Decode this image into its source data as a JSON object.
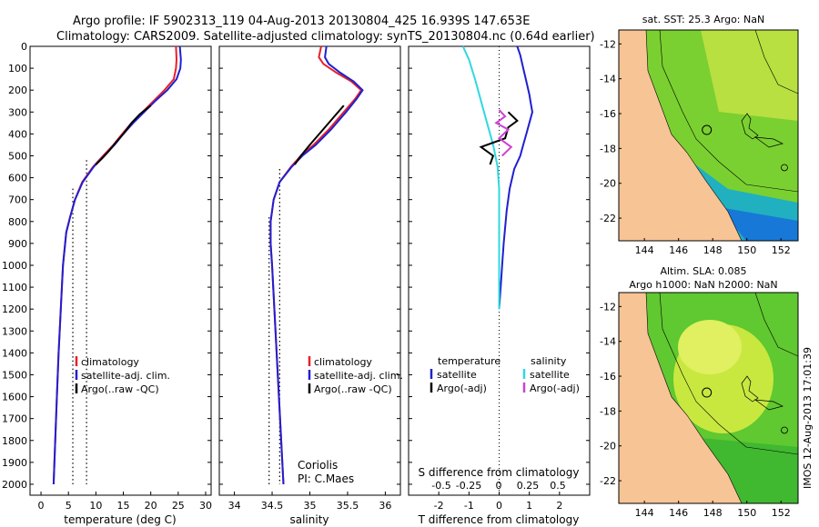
{
  "header": {
    "line1": "Argo profile: IF 5902313_119 04-Aug-2013 20130804_425 16.939S 147.653E",
    "line2": "Climatology: CARS2009. Satellite-adjusted climatology: synTS_20130804.nc (0.64d earlier)"
  },
  "side_label": "IMOS 12-Aug-2013 17:01:39",
  "chart_data": [
    {
      "type": "line",
      "id": "temperature",
      "xlabel": "temperature (deg C)",
      "ylabel": "",
      "xlim": [
        -2,
        31
      ],
      "ylim": [
        2050,
        0
      ],
      "xticks": [
        0,
        5,
        10,
        15,
        20,
        25,
        30
      ],
      "yticks": [
        0,
        100,
        200,
        300,
        400,
        500,
        600,
        700,
        800,
        900,
        1000,
        1100,
        1200,
        1300,
        1400,
        1500,
        1600,
        1700,
        1800,
        1900,
        2000
      ],
      "legend": [
        "climatology",
        "satellite-adj. clim.",
        "Argo(..raw -QC)"
      ],
      "legend_colors": [
        "#e8202a",
        "#2020d0",
        "#000000"
      ],
      "series": [
        {
          "name": "climatology",
          "color": "#e8202a",
          "points": [
            [
              24.6,
              0
            ],
            [
              24.7,
              60
            ],
            [
              24.6,
              100
            ],
            [
              24.2,
              150
            ],
            [
              22.5,
              200
            ],
            [
              20.5,
              250
            ],
            [
              18.5,
              300
            ],
            [
              16.5,
              350
            ],
            [
              14.8,
              400
            ],
            [
              13.2,
              450
            ],
            [
              11.3,
              500
            ],
            [
              9.5,
              550
            ],
            [
              7.5,
              620
            ],
            [
              6.2,
              700
            ],
            [
              5.3,
              780
            ],
            [
              4.6,
              850
            ],
            [
              4.0,
              1000
            ],
            [
              3.6,
              1200
            ],
            [
              3.2,
              1400
            ],
            [
              2.9,
              1600
            ],
            [
              2.6,
              1800
            ],
            [
              2.3,
              2000
            ]
          ]
        },
        {
          "name": "satellite-adj. clim.",
          "color": "#2020d0",
          "points": [
            [
              25.3,
              0
            ],
            [
              25.5,
              60
            ],
            [
              25.4,
              100
            ],
            [
              24.7,
              150
            ],
            [
              23.0,
              200
            ],
            [
              20.8,
              250
            ],
            [
              18.8,
              300
            ],
            [
              16.8,
              350
            ],
            [
              15.0,
              400
            ],
            [
              13.4,
              450
            ],
            [
              11.5,
              500
            ],
            [
              9.6,
              550
            ],
            [
              7.6,
              620
            ],
            [
              6.2,
              700
            ],
            [
              5.3,
              780
            ],
            [
              4.6,
              850
            ],
            [
              4.0,
              1000
            ],
            [
              3.6,
              1200
            ],
            [
              3.2,
              1400
            ],
            [
              2.9,
              1600
            ],
            [
              2.6,
              1800
            ],
            [
              2.3,
              2000
            ]
          ]
        },
        {
          "name": "Argo(..raw -QC)",
          "color": "#000000",
          "points": [
            [
              20.0,
              270
            ],
            [
              18.0,
              310
            ],
            [
              16.5,
              350
            ],
            [
              15.0,
              400
            ],
            [
              13.6,
              440
            ],
            [
              12.3,
              480
            ],
            [
              11.2,
              510
            ],
            [
              10.0,
              540
            ]
          ]
        }
      ],
      "ref_lines": [
        {
          "x": 5.8,
          "y0": 650,
          "y1": 2000
        },
        {
          "x": 8.3,
          "y0": 520,
          "y1": 2000
        }
      ]
    },
    {
      "type": "line",
      "id": "salinity",
      "xlabel": "salinity",
      "xlim": [
        33.8,
        36.2
      ],
      "ylim": [
        2050,
        0
      ],
      "xticks": [
        34,
        34.5,
        35,
        35.5,
        36
      ],
      "legend": [
        "climatology",
        "satellite-adj. clim.",
        "Argo(..raw -QC)"
      ],
      "legend_colors": [
        "#e8202a",
        "#2020d0",
        "#000000"
      ],
      "annotation": [
        "Coriolis",
        "PI: C.Maes"
      ],
      "series": [
        {
          "name": "climatology",
          "color": "#e8202a",
          "points": [
            [
              35.15,
              0
            ],
            [
              35.12,
              50
            ],
            [
              35.18,
              80
            ],
            [
              35.35,
              120
            ],
            [
              35.55,
              160
            ],
            [
              35.68,
              200
            ],
            [
              35.6,
              240
            ],
            [
              35.45,
              300
            ],
            [
              35.25,
              380
            ],
            [
              35.05,
              450
            ],
            [
              34.88,
              500
            ],
            [
              34.75,
              550
            ],
            [
              34.6,
              620
            ],
            [
              34.52,
              700
            ],
            [
              34.48,
              800
            ],
            [
              34.48,
              900
            ],
            [
              34.5,
              1000
            ],
            [
              34.53,
              1200
            ],
            [
              34.56,
              1400
            ],
            [
              34.59,
              1600
            ],
            [
              34.62,
              1800
            ],
            [
              34.65,
              2000
            ]
          ]
        },
        {
          "name": "satellite-adj. clim.",
          "color": "#2020d0",
          "points": [
            [
              35.22,
              0
            ],
            [
              35.2,
              50
            ],
            [
              35.25,
              80
            ],
            [
              35.4,
              120
            ],
            [
              35.58,
              160
            ],
            [
              35.7,
              200
            ],
            [
              35.62,
              240
            ],
            [
              35.48,
              300
            ],
            [
              35.28,
              380
            ],
            [
              35.08,
              450
            ],
            [
              34.9,
              500
            ],
            [
              34.76,
              550
            ],
            [
              34.6,
              620
            ],
            [
              34.52,
              700
            ],
            [
              34.48,
              800
            ],
            [
              34.48,
              900
            ],
            [
              34.5,
              1000
            ],
            [
              34.53,
              1200
            ],
            [
              34.56,
              1400
            ],
            [
              34.59,
              1600
            ],
            [
              34.62,
              1800
            ],
            [
              34.65,
              2000
            ]
          ]
        },
        {
          "name": "Argo(..raw -QC)",
          "color": "#000000",
          "points": [
            [
              35.45,
              270
            ],
            [
              35.3,
              330
            ],
            [
              35.15,
              390
            ],
            [
              35.0,
              450
            ],
            [
              34.88,
              500
            ],
            [
              34.8,
              540
            ]
          ]
        }
      ],
      "ref_lines": [
        {
          "x": 34.46,
          "y0": 780,
          "y1": 2000
        },
        {
          "x": 34.6,
          "y0": 560,
          "y1": 2000
        }
      ]
    },
    {
      "type": "line",
      "id": "difference",
      "xlabel": "T difference from climatology",
      "xlabel_top": "S difference from climatology",
      "xlim": [
        -3,
        3
      ],
      "ylim": [
        2050,
        0
      ],
      "xticks": [
        -2,
        -1,
        0,
        1,
        2
      ],
      "xticks_top": [
        -0.5,
        -0.25,
        0,
        0.25,
        0.5
      ],
      "xticks_top_labels": [
        "-0.5",
        "-0.25",
        "0",
        "0.25",
        "0.5"
      ],
      "legend_headers": [
        "temperature",
        "salinity"
      ],
      "legend_left": [
        "satellite",
        "Argo(-adj)"
      ],
      "legend_left_colors": [
        "#2020d0",
        "#000000"
      ],
      "legend_right": [
        "satellite",
        "Argo(-adj)"
      ],
      "legend_right_colors": [
        "#30d8e0",
        "#d040d0"
      ],
      "series": [
        {
          "name": "temperature satellite",
          "color": "#2020d0",
          "points": [
            [
              0.6,
              0
            ],
            [
              0.7,
              40
            ],
            [
              0.8,
              100
            ],
            [
              0.9,
              160
            ],
            [
              1.0,
              220
            ],
            [
              1.05,
              260
            ],
            [
              1.1,
              300
            ],
            [
              1.0,
              350
            ],
            [
              0.9,
              400
            ],
            [
              0.8,
              450
            ],
            [
              0.7,
              500
            ],
            [
              0.5,
              560
            ],
            [
              0.35,
              650
            ],
            [
              0.25,
              750
            ],
            [
              0.15,
              900
            ],
            [
              0.1,
              1000
            ],
            [
              0.05,
              1100
            ],
            [
              0.0,
              1200
            ]
          ]
        },
        {
          "name": "salinity satellite",
          "color": "#30d8e0",
          "points": [
            [
              -1.2,
              0
            ],
            [
              -1.0,
              60
            ],
            [
              -0.8,
              150
            ],
            [
              -0.6,
              250
            ],
            [
              -0.4,
              350
            ],
            [
              -0.2,
              450
            ],
            [
              -0.05,
              550
            ],
            [
              0.0,
              650
            ],
            [
              0.0,
              800
            ],
            [
              0.0,
              1000
            ],
            [
              0.0,
              1200
            ]
          ]
        },
        {
          "name": "temperature Argo(-adj)",
          "color": "#000000",
          "points": [
            [
              0.3,
              300
            ],
            [
              0.6,
              340
            ],
            [
              0.3,
              370
            ],
            [
              0.2,
              420
            ],
            [
              -0.6,
              460
            ],
            [
              -0.2,
              500
            ],
            [
              -0.3,
              540
            ]
          ]
        },
        {
          "name": "salinity Argo(-adj)",
          "color": "#d040d0",
          "points": [
            [
              0.0,
              290
            ],
            [
              0.2,
              320
            ],
            [
              -0.1,
              350
            ],
            [
              0.3,
              380
            ],
            [
              0.0,
              420
            ],
            [
              0.4,
              460
            ],
            [
              0.1,
              500
            ]
          ]
        }
      ]
    },
    {
      "type": "heatmap",
      "id": "sst_map",
      "title": "sat. SST: 25.3 Argo: NaN",
      "xlim": [
        142.5,
        153
      ],
      "ylim": [
        -23.3,
        -11.2
      ],
      "xticks": [
        144,
        146,
        148,
        150,
        152
      ],
      "yticks": [
        -12,
        -14,
        -16,
        -18,
        -20,
        -22
      ],
      "marker": [
        147.653,
        -16.939
      ]
    },
    {
      "type": "heatmap",
      "id": "sla_map",
      "title_line1": "Altim. SLA: 0.085",
      "title_line2": "Argo h1000: NaN h2000: NaN",
      "xlim": [
        142.5,
        153
      ],
      "ylim": [
        -23.3,
        -11.2
      ],
      "xticks": [
        144,
        146,
        148,
        150,
        152
      ],
      "yticks": [
        -12,
        -14,
        -16,
        -18,
        -20,
        -22
      ],
      "marker": [
        147.653,
        -16.939
      ]
    }
  ]
}
